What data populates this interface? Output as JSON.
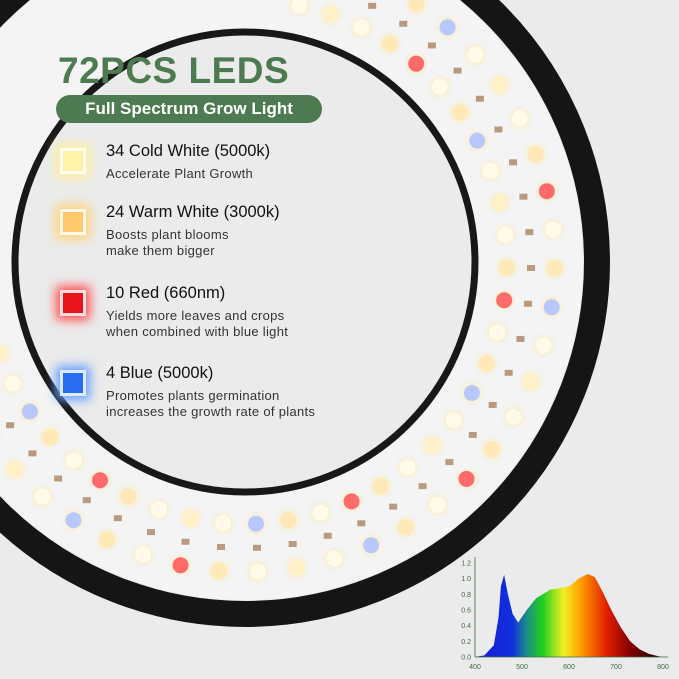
{
  "header": {
    "title": "72PCS LEDS",
    "subtitle": "Full Spectrum Grow Light"
  },
  "items": [
    {
      "title": "34 Cold White (5000k)",
      "desc": [
        "Accelerate Plant Growth"
      ],
      "color": "#fff3a8",
      "glow": "#fff0a0"
    },
    {
      "title": "24 Warm White (3000k)",
      "desc": [
        "Boosts plant blooms",
        "make them bigger"
      ],
      "color": "#ffc86a",
      "glow": "#ffd27a"
    },
    {
      "title": "10 Red (660nm)",
      "desc": [
        "Yields more leaves and crops",
        "when combined with blue light"
      ],
      "color": "#e8141c",
      "glow": "#ff5050"
    },
    {
      "title": "4 Blue (5000k)",
      "desc": [
        "Promotes plants germination",
        "increases the growth rate of plants"
      ],
      "color": "#2a6cf0",
      "glow": "#6aa0ff"
    }
  ],
  "colors": {
    "accent": "#4e7a51",
    "ring": "#1a1a1a"
  },
  "chart_data": {
    "type": "area",
    "xticks": [
      "400",
      "500",
      "600",
      "700",
      "800"
    ],
    "yticks": [
      "0.0",
      "0.2",
      "0.4",
      "0.6",
      "0.8",
      "1.0",
      "1.2"
    ],
    "xlim": [
      400,
      800
    ],
    "ylim": [
      0,
      1.2
    ],
    "x": [
      400,
      420,
      440,
      450,
      455,
      462,
      470,
      480,
      492,
      510,
      530,
      560,
      580,
      600,
      620,
      640,
      655,
      670,
      690,
      710,
      730,
      750,
      770,
      790,
      800
    ],
    "y": [
      0,
      0.02,
      0.15,
      0.5,
      0.9,
      1.05,
      0.8,
      0.55,
      0.44,
      0.6,
      0.75,
      0.86,
      0.88,
      0.9,
      1.0,
      1.06,
      1.02,
      0.85,
      0.6,
      0.38,
      0.2,
      0.1,
      0.04,
      0.01,
      0
    ]
  }
}
